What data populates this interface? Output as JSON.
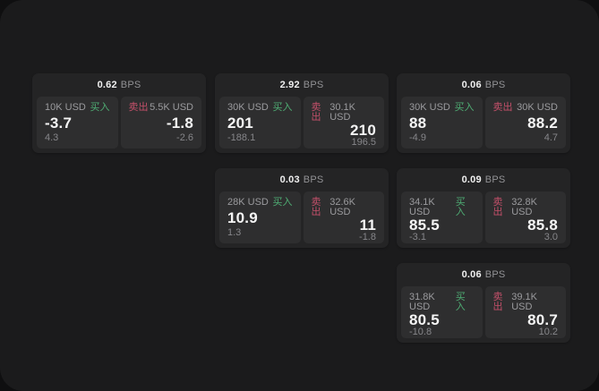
{
  "labels": {
    "bps_unit": "BPS",
    "buy": "买入",
    "sell": "卖出"
  },
  "colors": {
    "buy": "#4fae74",
    "sell": "#c4506a",
    "panel_bg": "#1b1b1c",
    "card_bg": "#242425",
    "tile_bg": "#2e2e2f"
  },
  "cards": [
    {
      "bps": "0.62",
      "buy_amount": "10K USD",
      "buy_value": "-3.7",
      "buy_delta": "4.3",
      "sell_amount": "5.5K USD",
      "sell_value": "-1.8",
      "sell_delta": "-2.6"
    },
    {
      "bps": "2.92",
      "buy_amount": "30K USD",
      "buy_value": "201",
      "buy_delta": "-188.1",
      "sell_amount": "30.1K USD",
      "sell_value": "210",
      "sell_delta": "196.5"
    },
    {
      "bps": "0.06",
      "buy_amount": "30K USD",
      "buy_value": "88",
      "buy_delta": "-4.9",
      "sell_amount": "30K USD",
      "sell_value": "88.2",
      "sell_delta": "4.7"
    },
    {
      "bps": "0.03",
      "buy_amount": "28K USD",
      "buy_value": "10.9",
      "buy_delta": "1.3",
      "sell_amount": "32.6K USD",
      "sell_value": "11",
      "sell_delta": "-1.8"
    },
    {
      "bps": "0.09",
      "buy_amount": "34.1K USD",
      "buy_value": "85.5",
      "buy_delta": "-3.1",
      "sell_amount": "32.8K USD",
      "sell_value": "85.8",
      "sell_delta": "3.0"
    },
    {
      "bps": "0.06",
      "buy_amount": "31.8K USD",
      "buy_value": "80.5",
      "buy_delta": "-10.8",
      "sell_amount": "39.1K USD",
      "sell_value": "80.7",
      "sell_delta": "10.2"
    }
  ]
}
